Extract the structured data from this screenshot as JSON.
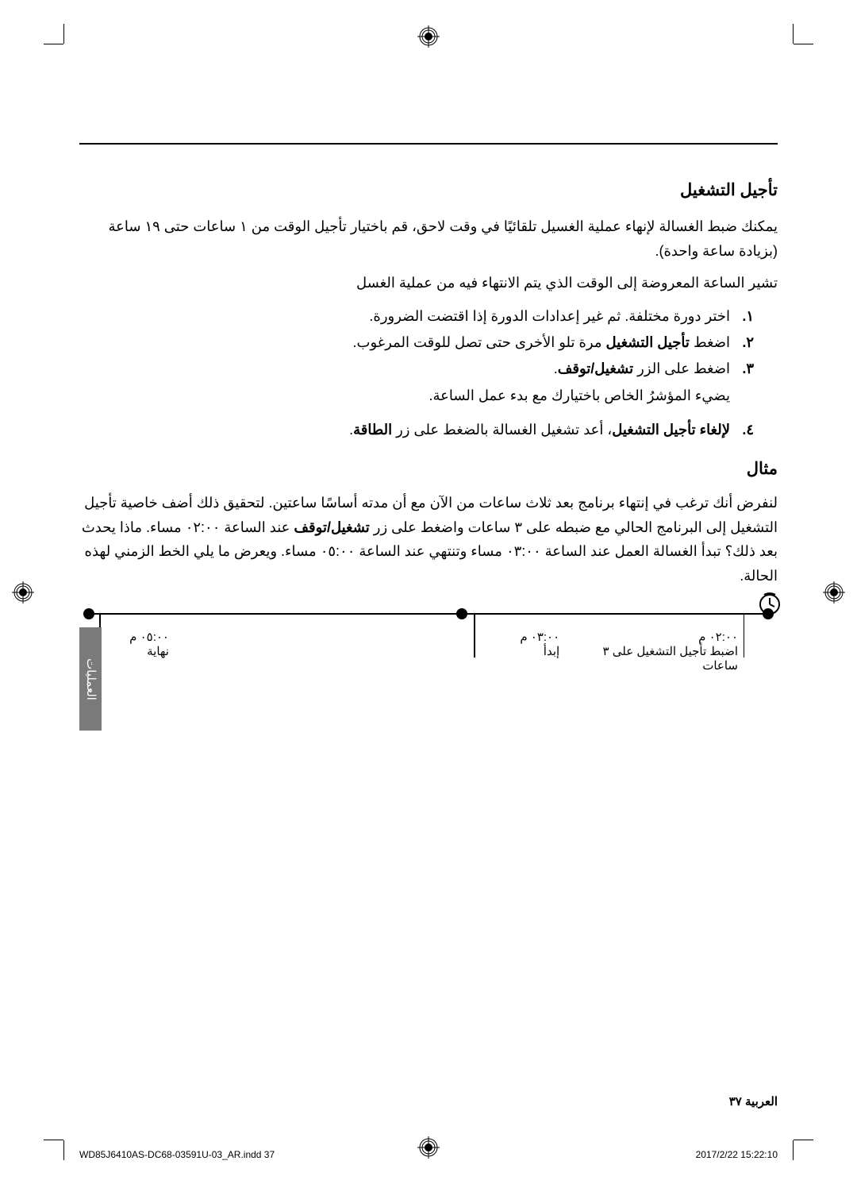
{
  "section_title": "تأجيل التشغيل",
  "intro_p1": "يمكنك ضبط الغسالة لإنهاء عملية الغسيل تلقائيًا في وقت لاحق، قم باختيار تأجيل الوقت من ١ ساعات حتى ١٩ ساعة (بزيادة ساعة واحدة).",
  "intro_p2": "تشير الساعة المعروضة إلى الوقت الذي يتم الانتهاء فيه من عملية الغسل",
  "steps": {
    "s1_num": "١.",
    "s1": "اختر دورة مختلفة. ثم غير إعدادات الدورة إذا اقتضت الضرورة.",
    "s2_num": "٢.",
    "s2_a": "اضغط ",
    "s2_b": "تأجيل التشغيل",
    "s2_c": " مرة تلو الأخرى حتى تصل للوقت المرغوب.",
    "s3_num": "٣.",
    "s3_a": "اضغط على الزر ",
    "s3_b": "تشغيل/توقف",
    "s3_c": ".",
    "s3_sub": "يضيء المؤشرُ الخاص باختيارك مع بدء عمل الساعة.",
    "s4_num": "٤.",
    "s4_a": "لإلغاء تأجيل التشغيل",
    "s4_b": "، أعد تشغيل الغسالة بالضغط على زر ",
    "s4_c": "الطاقة",
    "s4_d": "."
  },
  "example_title": "مثال",
  "example_text": "لنفرض أنك ترغب في إنتهاء برنامج  بعد ثلاث ساعات من الآن مع أن مدته أساسًا ساعتين. لتحقيق ذلك أضف خاصية تأجيل التشغيل إلى البرنامج الحالي مع ضبطه على ٣ ساعات واضغط على زر تشغيل/توقف عند الساعة ٠٢:٠٠ مساء. ماذا يحدث بعد ذلك؟ تبدأ الغسالة العمل عند الساعة ٠٣:٠٠ مساء وتنتهي عند الساعة ٠٥:٠٠ مساء. ويعرض ما يلي الخط الزمني لهذه الحالة.",
  "example_bold": "تشغيل/توقف",
  "timeline": {
    "t1_time": "٠٢:٠٠ م",
    "t1_label": "اضبط تأجيل التشغيل على ٣ ساعات",
    "t2_time": "٠٣:٠٠ م",
    "t2_label": "إبدأ",
    "t3_time": "٠٥:٠٠ م",
    "t3_label": "نهاية"
  },
  "side_tab": "العمليات",
  "footer_lang": "العربية",
  "footer_page": "٣٧",
  "print_file": "WD85J6410AS-DC68-03591U-03_AR.indd   37",
  "print_date": "2017/2/22   15:22:10"
}
